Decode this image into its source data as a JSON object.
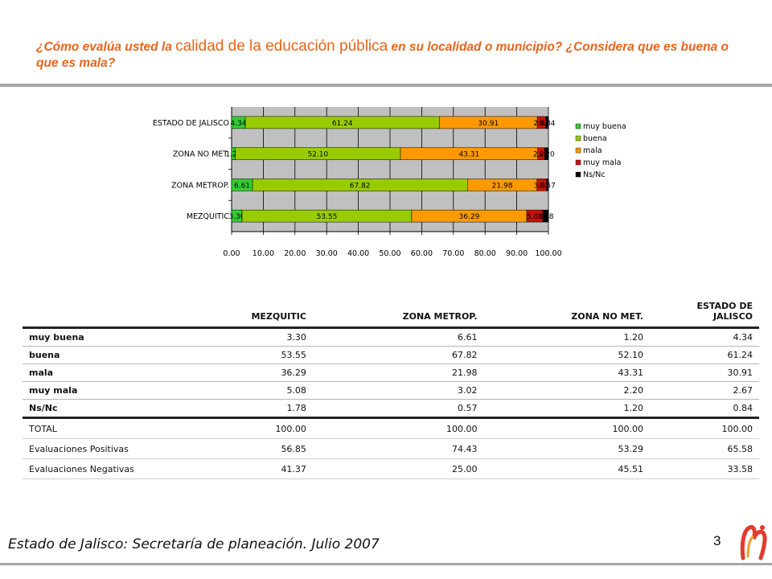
{
  "header": {
    "title_part1": "¿Cómo evalúa usted la ",
    "title_emph": "calidad de la educación pública",
    "title_part2": " en su localidad o municipio? ¿Considera que es buena o que es mala?"
  },
  "colors": {
    "muy buena": "#33cc33",
    "buena": "#99cc00",
    "mala": "#ff9900",
    "muy mala": "#cc1100",
    "Ns/Nc": "#000000",
    "plot_background": "#c0c0c0",
    "title_orange": "#e8641a"
  },
  "chart_data": {
    "type": "bar",
    "orientation": "horizontal",
    "stacked": true,
    "categories": [
      "MEZQUITIC",
      "ZONA METROP.",
      "ZONA NO MET.",
      "ESTADO DE JALISCO"
    ],
    "series": [
      {
        "name": "muy buena",
        "values": [
          3.3,
          6.61,
          1.2,
          4.34
        ]
      },
      {
        "name": "buena",
        "values": [
          53.55,
          67.82,
          52.1,
          61.24
        ]
      },
      {
        "name": "mala",
        "values": [
          36.29,
          21.98,
          43.31,
          30.91
        ]
      },
      {
        "name": "muy mala",
        "values": [
          5.08,
          3.02,
          2.2,
          2.67
        ]
      },
      {
        "name": "Ns/Nc",
        "values": [
          1.78,
          0.57,
          1.2,
          0.84
        ]
      }
    ],
    "xlim": [
      0,
      100
    ],
    "xticks": [
      "0.00",
      "10.00",
      "20.00",
      "30.00",
      "40.00",
      "50.00",
      "60.00",
      "70.00",
      "80.00",
      "90.00",
      "100.00"
    ],
    "grid": true,
    "legend": "right"
  },
  "table": {
    "headers": [
      "MEZQUITIC",
      "ZONA METROP.",
      "ZONA NO MET.",
      "ESTADO DE JALISCO"
    ],
    "rows": [
      {
        "label": "muy buena",
        "values": [
          "3.30",
          "6.61",
          "1.20",
          "4.34"
        ]
      },
      {
        "label": "buena",
        "values": [
          "53.55",
          "67.82",
          "52.10",
          "61.24"
        ]
      },
      {
        "label": "mala",
        "values": [
          "36.29",
          "21.98",
          "43.31",
          "30.91"
        ]
      },
      {
        "label": "muy mala",
        "values": [
          "5.08",
          "3.02",
          "2.20",
          "2.67"
        ]
      },
      {
        "label": "Ns/Nc",
        "values": [
          "1.78",
          "0.57",
          "1.20",
          "0.84"
        ]
      }
    ],
    "summary": [
      {
        "label": "TOTAL",
        "values": [
          "100.00",
          "100.00",
          "100.00",
          "100.00"
        ]
      },
      {
        "label": "Evaluaciones Positivas",
        "values": [
          "56.85",
          "74.43",
          "53.29",
          "65.58"
        ]
      },
      {
        "label": "Evaluaciones Negativas",
        "values": [
          "41.37",
          "25.00",
          "45.51",
          "33.58"
        ]
      }
    ]
  },
  "footer": {
    "source": "Estado de Jalisco: Secretaría de planeación. Julio 2007",
    "page_number": "3"
  }
}
